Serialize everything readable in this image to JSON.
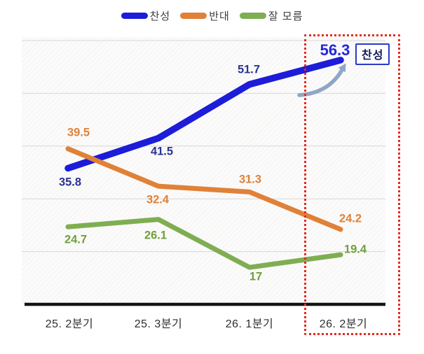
{
  "chart_data": {
    "type": "line",
    "categories": [
      "25. 2분기",
      "25. 3분기",
      "26. 1분기",
      "26. 2분기"
    ],
    "series": [
      {
        "name": "찬성",
        "color": "#1c1cd9",
        "label_color": "#2a3494",
        "values": [
          35.8,
          41.5,
          51.7,
          56.3
        ]
      },
      {
        "name": "반대",
        "color": "#e08138",
        "label_color": "#e08138",
        "values": [
          39.5,
          32.4,
          31.3,
          24.2
        ]
      },
      {
        "name": "잘 모름",
        "color": "#7fae52",
        "label_color": "#6fa03f",
        "values": [
          24.7,
          26.1,
          17,
          19.4
        ]
      }
    ],
    "ylim": [
      10,
      62
    ],
    "gridline_values": [
      20,
      30,
      40,
      50,
      60
    ],
    "grid": true,
    "legend_position": "top",
    "xlabel": "",
    "ylabel": "",
    "title": ""
  },
  "annotation": {
    "label": "찬성",
    "value_label": "56.3",
    "value_color": "#2227dd",
    "highlight_category": "26. 2분기",
    "highlight_box_color": "#e6281e",
    "arrow_color": "#8ea7c7"
  },
  "colors": {
    "axis": "#141414",
    "gridline": "#d8d8d8",
    "plot_bg": "#fbfbfb",
    "legend_text": "#3d3d3d",
    "x_label_text": "#2e2e2e"
  }
}
